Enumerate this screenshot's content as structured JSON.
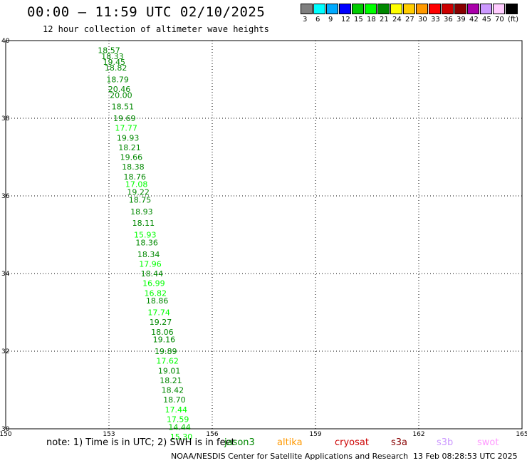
{
  "header": {
    "title": "00:00 – 11:59 UTC 02/10/2025",
    "subtitle": "12 hour collection of altimeter wave heights"
  },
  "scale": {
    "labels": [
      "3",
      "6",
      "9",
      "12",
      "15",
      "18",
      "21",
      "24",
      "27",
      "30",
      "33",
      "36",
      "39",
      "42",
      "45",
      "70",
      "(ft)"
    ],
    "colors": [
      "#7f7f7f",
      "#00ffff",
      "#00aaff",
      "#0000ff",
      "#00cc00",
      "#00ff00",
      "#008800",
      "#ffff00",
      "#ffcc00",
      "#ff9900",
      "#ff0000",
      "#cc0000",
      "#880000",
      "#aa00aa",
      "#cc99ff",
      "#ffccff",
      "#000000"
    ]
  },
  "notes": {
    "prefix": "note:  1) Time is in UTC;  2) SWH is in feet",
    "satellites": [
      {
        "name": "jason3",
        "color": "#008800"
      },
      {
        "name": "altika",
        "color": "#ff9900"
      },
      {
        "name": "cryosat",
        "color": "#cc0000"
      },
      {
        "name": "s3a",
        "color": "#880000"
      },
      {
        "name": "s3b",
        "color": "#cc99ff"
      },
      {
        "name": "swot",
        "color": "#ff99ff"
      }
    ]
  },
  "footer": {
    "credit": "NOAA/NESDIS Center for Satellite Applications and Research",
    "generated": "13 Feb 08:28:53 UTC 2025"
  },
  "chart_data": {
    "type": "scatter",
    "title": "00:00 – 11:59 UTC 02/10/2025",
    "xlim": [
      150,
      165
    ],
    "ylim": [
      30,
      40
    ],
    "xticks": [
      150,
      153,
      156,
      159,
      162,
      165
    ],
    "yticks": [
      30,
      32,
      34,
      36,
      38,
      40
    ],
    "grid": true,
    "points": [
      {
        "x": 153.0,
        "y": 39.75,
        "v": "18.57"
      },
      {
        "x": 153.1,
        "y": 39.6,
        "v": "18.33"
      },
      {
        "x": 153.15,
        "y": 39.45,
        "v": "19.45"
      },
      {
        "x": 153.2,
        "y": 39.3,
        "v": "18.82"
      },
      {
        "x": 153.25,
        "y": 39.0,
        "v": "18.79"
      },
      {
        "x": 153.3,
        "y": 38.75,
        "v": "20.46"
      },
      {
        "x": 153.35,
        "y": 38.6,
        "v": "20.00"
      },
      {
        "x": 153.4,
        "y": 38.3,
        "v": "18.51"
      },
      {
        "x": 153.45,
        "y": 38.0,
        "v": "19.69"
      },
      {
        "x": 153.5,
        "y": 37.75,
        "v": "17.77"
      },
      {
        "x": 153.55,
        "y": 37.5,
        "v": "19.93"
      },
      {
        "x": 153.6,
        "y": 37.25,
        "v": "18.21"
      },
      {
        "x": 153.65,
        "y": 37.0,
        "v": "19.66"
      },
      {
        "x": 153.7,
        "y": 36.75,
        "v": "18.38"
      },
      {
        "x": 153.75,
        "y": 36.5,
        "v": "18.76"
      },
      {
        "x": 153.8,
        "y": 36.3,
        "v": "17.08"
      },
      {
        "x": 153.85,
        "y": 36.1,
        "v": "19.22"
      },
      {
        "x": 153.9,
        "y": 35.9,
        "v": "18.75"
      },
      {
        "x": 153.95,
        "y": 35.6,
        "v": "18.93"
      },
      {
        "x": 154.0,
        "y": 35.3,
        "v": "18.11"
      },
      {
        "x": 154.05,
        "y": 35.0,
        "v": "15.93"
      },
      {
        "x": 154.1,
        "y": 34.8,
        "v": "18.36"
      },
      {
        "x": 154.15,
        "y": 34.5,
        "v": "18.34"
      },
      {
        "x": 154.2,
        "y": 34.25,
        "v": "17.96"
      },
      {
        "x": 154.25,
        "y": 34.0,
        "v": "18.44"
      },
      {
        "x": 154.3,
        "y": 33.75,
        "v": "16.99"
      },
      {
        "x": 154.35,
        "y": 33.5,
        "v": "16.82"
      },
      {
        "x": 154.4,
        "y": 33.3,
        "v": "18.86"
      },
      {
        "x": 154.45,
        "y": 33.0,
        "v": "17.74"
      },
      {
        "x": 154.5,
        "y": 32.75,
        "v": "19.27"
      },
      {
        "x": 154.55,
        "y": 32.5,
        "v": "18.06"
      },
      {
        "x": 154.6,
        "y": 32.3,
        "v": "19.16"
      },
      {
        "x": 154.65,
        "y": 32.0,
        "v": "19.89"
      },
      {
        "x": 154.7,
        "y": 31.75,
        "v": "17.62"
      },
      {
        "x": 154.75,
        "y": 31.5,
        "v": "19.01"
      },
      {
        "x": 154.8,
        "y": 31.25,
        "v": "18.21"
      },
      {
        "x": 154.85,
        "y": 31.0,
        "v": "18.42"
      },
      {
        "x": 154.9,
        "y": 30.75,
        "v": "18.70"
      },
      {
        "x": 154.95,
        "y": 30.5,
        "v": "17.44"
      },
      {
        "x": 155.0,
        "y": 30.25,
        "v": "17.59"
      },
      {
        "x": 155.05,
        "y": 30.05,
        "v": "14.44"
      },
      {
        "x": 155.1,
        "y": 29.8,
        "v": "15.30"
      }
    ]
  }
}
